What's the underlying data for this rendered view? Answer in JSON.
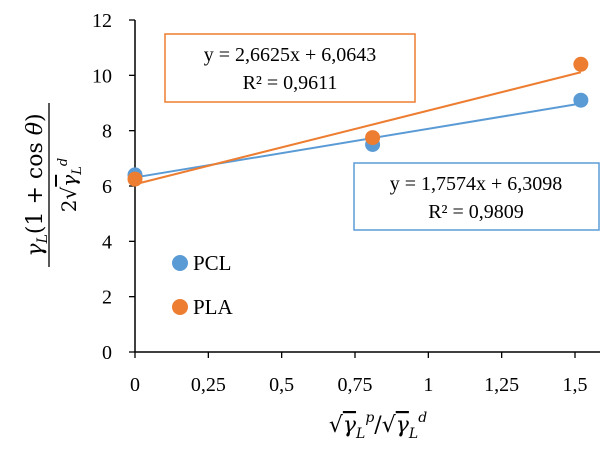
{
  "chart_data": {
    "type": "scatter",
    "x_ticks": [
      "0",
      "0,25",
      "0,5",
      "0,75",
      "1",
      "1,25",
      "1,5"
    ],
    "y_ticks": [
      "0",
      "2",
      "4",
      "6",
      "8",
      "10",
      "12"
    ],
    "xlim": [
      0,
      1.55
    ],
    "ylim": [
      0,
      12
    ],
    "grid": false,
    "legend_position": "bottom-left",
    "series": [
      {
        "name": "PCL",
        "color": "#5B9BD5",
        "x": [
          0,
          0.81,
          1.52
        ],
        "y": [
          6.4,
          7.5,
          9.1
        ],
        "trendline": {
          "slope": 1.7574,
          "intercept": 6.3098
        },
        "equation": "y = 1,7574x + 6,3098",
        "r2": "R² = 0,9809"
      },
      {
        "name": "PLA",
        "color": "#ED7D31",
        "x": [
          0,
          0.81,
          1.52
        ],
        "y": [
          6.25,
          7.75,
          10.4
        ],
        "trendline": {
          "slope": 2.6625,
          "intercept": 6.0643
        },
        "equation": "y = 2,6625x + 6,0643",
        "r2": "R² = 0,9611"
      }
    ],
    "xlabel": {
      "parts": [
        "√",
        "γ",
        "L",
        "p",
        "/",
        "√",
        "γ",
        "L",
        "d"
      ]
    },
    "ylabel": {
      "numerator_parts": [
        "γ",
        "L",
        "(1 + cos ",
        "θ",
        ")"
      ],
      "denominator_parts": [
        "2",
        "√",
        "γ",
        "L",
        "d"
      ]
    }
  }
}
